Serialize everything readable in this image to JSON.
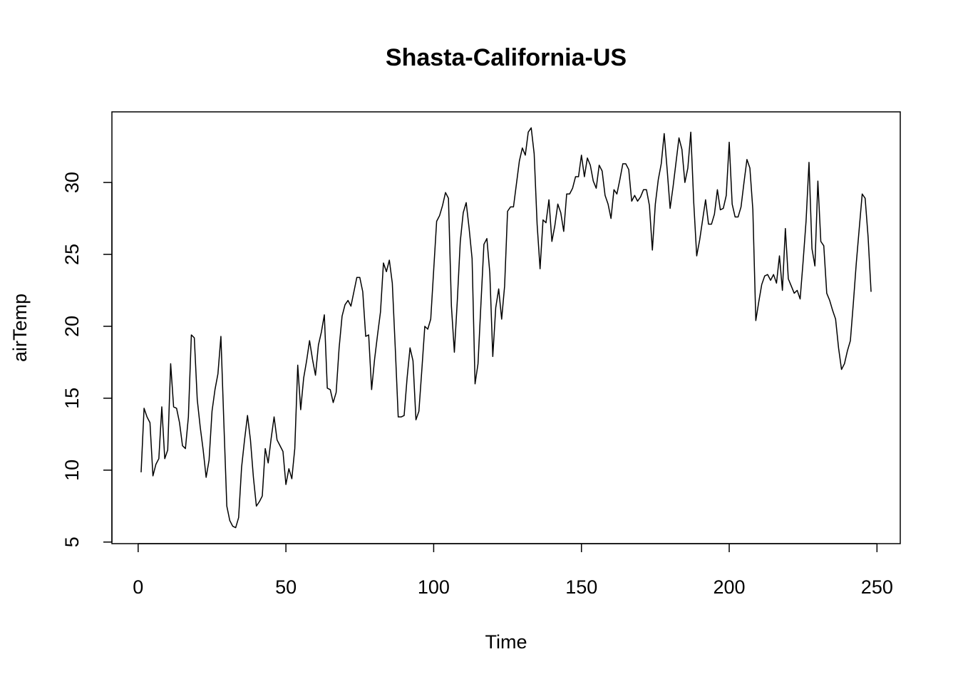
{
  "chart_data": {
    "type": "line",
    "title": "Shasta-California-US",
    "xlabel": "Time",
    "ylabel": "airTemp",
    "color": "#000000",
    "x": [
      1,
      2,
      3,
      4,
      5,
      6,
      7,
      8,
      9,
      10,
      11,
      12,
      13,
      14,
      15,
      16,
      17,
      18,
      19,
      20,
      21,
      22,
      23,
      24,
      25,
      26,
      27,
      28,
      29,
      30,
      31,
      32,
      33,
      34,
      35,
      36,
      37,
      38,
      39,
      40,
      41,
      42,
      43,
      44,
      45,
      46,
      47,
      48,
      49,
      50,
      51,
      52,
      53,
      54,
      55,
      56,
      57,
      58,
      59,
      60,
      61,
      62,
      63,
      64,
      65,
      66,
      67,
      68,
      69,
      70,
      71,
      72,
      73,
      74,
      75,
      76,
      77,
      78,
      79,
      80,
      81,
      82,
      83,
      84,
      85,
      86,
      87,
      88,
      89,
      90,
      91,
      92,
      93,
      94,
      95,
      96,
      97,
      98,
      99,
      100,
      101,
      102,
      103,
      104,
      105,
      106,
      107,
      108,
      109,
      110,
      111,
      112,
      113,
      114,
      115,
      116,
      117,
      118,
      119,
      120,
      121,
      122,
      123,
      124,
      125,
      126,
      127,
      128,
      129,
      130,
      131,
      132,
      133,
      134,
      135,
      136,
      137,
      138,
      139,
      140,
      141,
      142,
      143,
      144,
      145,
      146,
      147,
      148,
      149,
      150,
      151,
      152,
      153,
      154,
      155,
      156,
      157,
      158,
      159,
      160,
      161,
      162,
      163,
      164,
      165,
      166,
      167,
      168,
      169,
      170,
      171,
      172,
      173,
      174,
      175,
      176,
      177,
      178,
      179,
      180,
      181,
      182,
      183,
      184,
      185,
      186,
      187,
      188,
      189,
      190,
      191,
      192,
      193,
      194,
      195,
      196,
      197,
      198,
      199,
      200,
      201,
      202,
      203,
      204,
      205,
      206,
      207,
      208,
      209,
      210,
      211,
      212,
      213,
      214,
      215,
      216,
      217,
      218,
      219,
      220,
      221,
      222,
      223,
      224,
      225,
      226,
      227,
      228,
      229,
      230,
      231,
      232,
      233,
      234,
      235,
      236,
      237,
      238,
      239,
      240,
      241,
      242,
      243,
      244,
      245,
      246,
      247,
      248
    ],
    "values": [
      9.85,
      14.3,
      13.7,
      13.3,
      9.6,
      10.4,
      10.8,
      14.4,
      10.8,
      11.4,
      17.4,
      14.4,
      14.3,
      13.3,
      11.7,
      11.5,
      13.7,
      19.4,
      19.2,
      14.9,
      13.0,
      11.4,
      9.5,
      10.7,
      14.1,
      15.6,
      16.7,
      19.3,
      13.3,
      7.5,
      6.5,
      6.1,
      6.0,
      6.7,
      10.2,
      12.1,
      13.8,
      12.1,
      9.5,
      7.5,
      7.8,
      8.2,
      11.5,
      10.5,
      12.2,
      13.7,
      12.1,
      11.7,
      11.3,
      9.0,
      10.1,
      9.4,
      11.5,
      17.3,
      14.2,
      16.4,
      17.6,
      19.0,
      17.7,
      16.6,
      18.7,
      19.6,
      20.8,
      15.7,
      15.6,
      14.7,
      15.4,
      18.5,
      20.7,
      21.5,
      21.8,
      21.4,
      22.4,
      23.4,
      23.4,
      22.4,
      19.3,
      19.4,
      15.6,
      17.7,
      19.4,
      21.0,
      24.4,
      23.8,
      24.6,
      23.0,
      18.5,
      13.7,
      13.7,
      13.8,
      16.4,
      18.5,
      17.6,
      13.5,
      14.1,
      17.0,
      20.0,
      19.8,
      20.5,
      23.9,
      27.3,
      27.7,
      28.4,
      29.3,
      28.9,
      21.4,
      18.2,
      21.8,
      25.9,
      27.9,
      28.6,
      26.8,
      24.7,
      16.0,
      17.4,
      21.6,
      25.7,
      26.1,
      23.7,
      17.9,
      21.3,
      22.6,
      20.5,
      22.8,
      28.0,
      28.3,
      28.3,
      29.9,
      31.5,
      32.4,
      31.9,
      33.5,
      33.8,
      32.0,
      27.1,
      24.0,
      27.4,
      27.2,
      28.8,
      25.9,
      27.0,
      28.5,
      27.9,
      26.6,
      29.2,
      29.2,
      29.6,
      30.4,
      30.4,
      31.9,
      30.4,
      31.7,
      31.2,
      30.1,
      29.6,
      31.2,
      30.8,
      29.1,
      28.5,
      27.5,
      29.5,
      29.2,
      30.2,
      31.3,
      31.3,
      30.9,
      28.7,
      29.1,
      28.7,
      29.0,
      29.5,
      29.5,
      28.4,
      25.3,
      28.5,
      30.2,
      31.3,
      33.4,
      30.9,
      28.2,
      29.7,
      31.4,
      33.1,
      32.3,
      30.0,
      31.0,
      33.5,
      28.6,
      24.9,
      26.0,
      27.4,
      28.8,
      27.1,
      27.1,
      27.8,
      29.5,
      28.1,
      28.2,
      29.1,
      32.8,
      28.5,
      27.6,
      27.6,
      28.3,
      30.0,
      31.6,
      31.0,
      28.1,
      20.4,
      21.7,
      22.9,
      23.5,
      23.6,
      23.2,
      23.6,
      23.0,
      24.9,
      22.5,
      26.8,
      23.3,
      22.8,
      22.3,
      22.5,
      21.9,
      24.5,
      27.3,
      31.4,
      25.4,
      24.2,
      30.1,
      25.9,
      25.6,
      22.3,
      21.8,
      21.1,
      20.5,
      18.5,
      17.0,
      17.4,
      18.3,
      19.0,
      21.6,
      24.4,
      26.8,
      29.2,
      28.9,
      26.2,
      22.4
    ],
    "xlim": [
      -8.88,
      257.88
    ],
    "ylim": [
      4.89,
      34.91
    ],
    "xticks": [
      0,
      50,
      100,
      150,
      200,
      250
    ],
    "yticks": [
      5,
      10,
      15,
      20,
      25,
      30
    ]
  }
}
